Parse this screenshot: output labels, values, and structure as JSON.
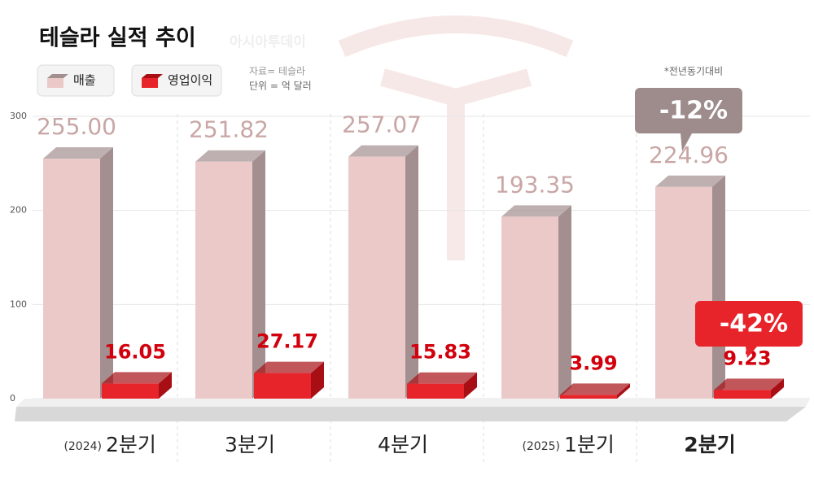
{
  "chart_data": {
    "type": "bar3d",
    "title": "테슬라 실적 추이",
    "watermark": "아시아투데이",
    "source": "자료= 테슬라",
    "unit": "단위 = 억 달러",
    "note": "*전년동기대비",
    "categories": [
      "2분기",
      "3분기",
      "4분기",
      "1분기",
      "2분기"
    ],
    "year_labels": [
      "(2024)",
      null,
      null,
      "(2025)",
      null
    ],
    "series": [
      {
        "name": "매출",
        "color": "#ebc9c9",
        "side_color": "#a38f8f",
        "label_color": "#c9a6a6",
        "values": [
          255.0,
          251.82,
          257.07,
          193.35,
          224.96
        ],
        "value_labels": [
          "255.00",
          "251.82",
          "257.07",
          "193.35",
          "224.96"
        ]
      },
      {
        "name": "영업이익",
        "color": "#e8242b",
        "side_color": "#a80f15",
        "label_color": "#d1000c",
        "values": [
          16.05,
          27.17,
          15.83,
          3.99,
          9.23
        ]
      }
    ],
    "annotations": [
      {
        "text": "-12%",
        "color": "#9e8c8c"
      },
      {
        "text": "-42%",
        "color": "#e8242b"
      }
    ],
    "ylim": [
      0,
      300
    ],
    "yticks": [
      0,
      100,
      200,
      300
    ],
    "grid": true
  }
}
